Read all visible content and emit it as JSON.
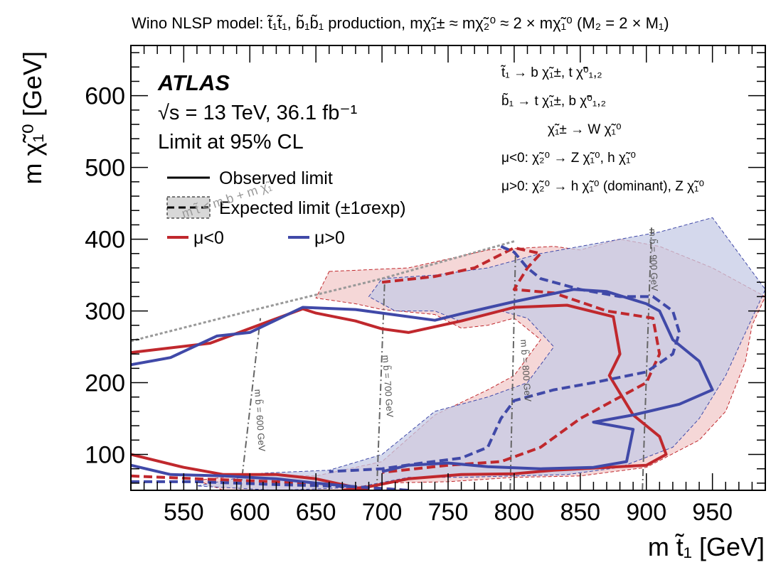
{
  "chart_data": {
    "type": "line",
    "title": "Wino NLSP model: t̃₁t̃₁, b̃₁b̃₁ production, mχ̃₁± ≈ mχ̃₂⁰ ≈ 2 × mχ̃₁⁰ (M₂ = 2 × M₁)",
    "xlabel": "m t̃₁ [GeV]",
    "ylabel": "m χ̃₁⁰ [GeV]",
    "xlim": [
      510,
      990
    ],
    "ylim": [
      50,
      670
    ],
    "xticks": [
      "550",
      "600",
      "650",
      "700",
      "750",
      "800",
      "850",
      "900",
      "950"
    ],
    "yticks": [
      "100",
      "200",
      "300",
      "400",
      "500",
      "600"
    ],
    "experiment": "ATLAS",
    "energy_text": "√s = 13 TeV, 36.1 fb⁻¹",
    "cl_text": "Limit at 95% CL",
    "legend": {
      "observed": "Observed limit",
      "expected": "Expected limit (±1σexp)",
      "mu_neg": "μ<0",
      "mu_pos": "μ>0",
      "placement": "top-left"
    },
    "decays": [
      "t̃₁ → b χ̃₁±, t χ̃⁰₁,₂",
      "b̃₁ → t χ̃₁±, b χ̃⁰₁,₂",
      "χ̃₁± → W χ̃₁⁰",
      "μ<0:  χ̃₂⁰ → Z χ̃₁⁰, h χ̃₁⁰",
      "μ>0:  χ̃₂⁰ → h χ̃₁⁰ (dominant), Z χ̃₁⁰"
    ],
    "diagonal_label": "m t̃ < m b + m χ̃₁",
    "sbottom_lines": [
      {
        "label": "m b̃ = 600 GeV",
        "points": [
          [
            593,
            50
          ],
          [
            608,
            290
          ]
        ]
      },
      {
        "label": "m b̃ = 700 GeV",
        "points": [
          [
            696,
            50
          ],
          [
            702,
            340
          ]
        ]
      },
      {
        "label": "m b̃ = 800 GeV",
        "points": [
          [
            797,
            50
          ],
          [
            801,
            380
          ]
        ]
      },
      {
        "label": "m b̃ = 900 GeV",
        "points": [
          [
            897,
            50
          ],
          [
            904,
            420
          ]
        ]
      }
    ],
    "colors": {
      "mu_neg": "#c0282d",
      "mu_pos": "#4049a8",
      "band_neg": "#f2c9c9",
      "band_pos": "#c6cbe6",
      "kinematic": "#999999",
      "sbottom": "#666666"
    },
    "series": [
      {
        "name": "μ<0 Observed limit",
        "style": "solid",
        "color": "#c0282d",
        "upper": [
          [
            510,
            242
          ],
          [
            570,
            255
          ],
          [
            640,
            303
          ],
          [
            650,
            297
          ],
          [
            680,
            286
          ],
          [
            700,
            275
          ],
          [
            720,
            270
          ],
          [
            760,
            286
          ],
          [
            800,
            305
          ],
          [
            840,
            308
          ],
          [
            875,
            292
          ],
          [
            880,
            240
          ],
          [
            872,
            210
          ],
          [
            890,
            155
          ],
          [
            910,
            125
          ],
          [
            915,
            100
          ],
          [
            900,
            85
          ],
          [
            870,
            82
          ],
          [
            830,
            78
          ],
          [
            800,
            73
          ],
          [
            760,
            72
          ],
          [
            720,
            66
          ],
          [
            690,
            55
          ],
          [
            670,
            50
          ]
        ],
        "lower": [
          [
            510,
            100
          ],
          [
            550,
            82
          ],
          [
            580,
            72
          ],
          [
            620,
            72
          ],
          [
            650,
            66
          ],
          [
            670,
            58
          ],
          [
            690,
            50
          ]
        ]
      },
      {
        "name": "μ<0 Expected limit",
        "style": "dashed",
        "color": "#c0282d",
        "upper": [
          [
            700,
            340
          ],
          [
            740,
            348
          ],
          [
            770,
            360
          ],
          [
            800,
            388
          ],
          [
            820,
            380
          ],
          [
            810,
            360
          ],
          [
            800,
            330
          ],
          [
            830,
            325
          ],
          [
            870,
            300
          ],
          [
            905,
            290
          ],
          [
            910,
            240
          ],
          [
            900,
            200
          ],
          [
            880,
            180
          ],
          [
            850,
            150
          ],
          [
            820,
            110
          ],
          [
            790,
            90
          ],
          [
            750,
            85
          ],
          [
            700,
            75
          ]
        ],
        "lower": [
          [
            510,
            70
          ],
          [
            560,
            66
          ],
          [
            620,
            62
          ],
          [
            680,
            55
          ],
          [
            720,
            50
          ]
        ]
      },
      {
        "name": "μ>0 Observed limit",
        "style": "solid",
        "color": "#4049a8",
        "upper": [
          [
            510,
            225
          ],
          [
            540,
            235
          ],
          [
            575,
            265
          ],
          [
            600,
            270
          ],
          [
            640,
            305
          ],
          [
            680,
            302
          ],
          [
            700,
            297
          ],
          [
            740,
            287
          ],
          [
            760,
            296
          ],
          [
            800,
            313
          ],
          [
            845,
            330
          ],
          [
            870,
            327
          ],
          [
            900,
            310
          ],
          [
            910,
            300
          ],
          [
            920,
            260
          ],
          [
            940,
            230
          ],
          [
            950,
            190
          ],
          [
            925,
            170
          ],
          [
            890,
            155
          ],
          [
            860,
            145
          ],
          [
            890,
            135
          ],
          [
            885,
            90
          ],
          [
            860,
            82
          ],
          [
            820,
            80
          ],
          [
            780,
            83
          ],
          [
            750,
            88
          ],
          [
            720,
            85
          ],
          [
            700,
            76
          ]
        ],
        "lower": [
          [
            510,
            85
          ],
          [
            540,
            72
          ],
          [
            580,
            70
          ],
          [
            620,
            66
          ],
          [
            650,
            60
          ],
          [
            680,
            55
          ]
        ]
      },
      {
        "name": "μ>0 Expected limit",
        "style": "dashed",
        "color": "#4049a8",
        "upper": [
          [
            790,
            390
          ],
          [
            800,
            382
          ],
          [
            810,
            360
          ],
          [
            820,
            345
          ],
          [
            850,
            330
          ],
          [
            880,
            320
          ],
          [
            905,
            320
          ],
          [
            920,
            300
          ],
          [
            925,
            270
          ],
          [
            920,
            240
          ],
          [
            900,
            215
          ],
          [
            860,
            200
          ],
          [
            830,
            190
          ],
          [
            800,
            175
          ],
          [
            790,
            150
          ],
          [
            780,
            110
          ],
          [
            760,
            95
          ],
          [
            730,
            88
          ],
          [
            700,
            80
          ],
          [
            660,
            76
          ]
        ],
        "lower": [
          [
            510,
            62
          ],
          [
            560,
            62
          ],
          [
            620,
            58
          ],
          [
            680,
            55
          ],
          [
            720,
            50
          ]
        ]
      }
    ],
    "bands": [
      {
        "name": "μ<0 ±1σexp",
        "color": "#f2c9c9",
        "points": [
          [
            660,
            355
          ],
          [
            720,
            360
          ],
          [
            780,
            385
          ],
          [
            830,
            390
          ],
          [
            850,
            385
          ],
          [
            880,
            400
          ],
          [
            910,
            390
          ],
          [
            950,
            360
          ],
          [
            990,
            320
          ],
          [
            980,
            280
          ],
          [
            975,
            230
          ],
          [
            960,
            160
          ],
          [
            940,
            120
          ],
          [
            900,
            82
          ],
          [
            850,
            70
          ],
          [
            800,
            68
          ],
          [
            750,
            62
          ],
          [
            700,
            60
          ],
          [
            680,
            50
          ],
          [
            580,
            50
          ],
          [
            560,
            64
          ],
          [
            600,
            72
          ],
          [
            650,
            70
          ],
          [
            700,
            90
          ],
          [
            740,
            155
          ],
          [
            780,
            190
          ],
          [
            800,
            210
          ],
          [
            820,
            260
          ],
          [
            800,
            290
          ],
          [
            780,
            280
          ],
          [
            760,
            276
          ],
          [
            740,
            295
          ],
          [
            700,
            302
          ],
          [
            680,
            310
          ],
          [
            650,
            318
          ]
        ]
      },
      {
        "name": "μ>0 ±1σexp",
        "color": "#c6cbe6",
        "points": [
          [
            700,
            345
          ],
          [
            740,
            350
          ],
          [
            780,
            360
          ],
          [
            820,
            380
          ],
          [
            850,
            390
          ],
          [
            880,
            400
          ],
          [
            910,
            410
          ],
          [
            950,
            430
          ],
          [
            990,
            330
          ],
          [
            980,
            290
          ],
          [
            960,
            210
          ],
          [
            940,
            150
          ],
          [
            920,
            110
          ],
          [
            880,
            82
          ],
          [
            840,
            72
          ],
          [
            800,
            70
          ],
          [
            760,
            68
          ],
          [
            720,
            68
          ],
          [
            680,
            54
          ],
          [
            620,
            50
          ],
          [
            560,
            56
          ],
          [
            610,
            74
          ],
          [
            660,
            78
          ],
          [
            700,
            100
          ],
          [
            740,
            160
          ],
          [
            780,
            180
          ],
          [
            810,
            200
          ],
          [
            830,
            250
          ],
          [
            810,
            290
          ],
          [
            790,
            300
          ],
          [
            760,
            285
          ],
          [
            740,
            300
          ],
          [
            710,
            300
          ],
          [
            690,
            320
          ]
        ]
      }
    ],
    "kinematic_boundary": {
      "style": "dashed",
      "color": "#999999",
      "points": [
        [
          510,
          258
        ],
        [
          600,
          300
        ],
        [
          700,
          345
        ],
        [
          800,
          397
        ]
      ]
    }
  }
}
